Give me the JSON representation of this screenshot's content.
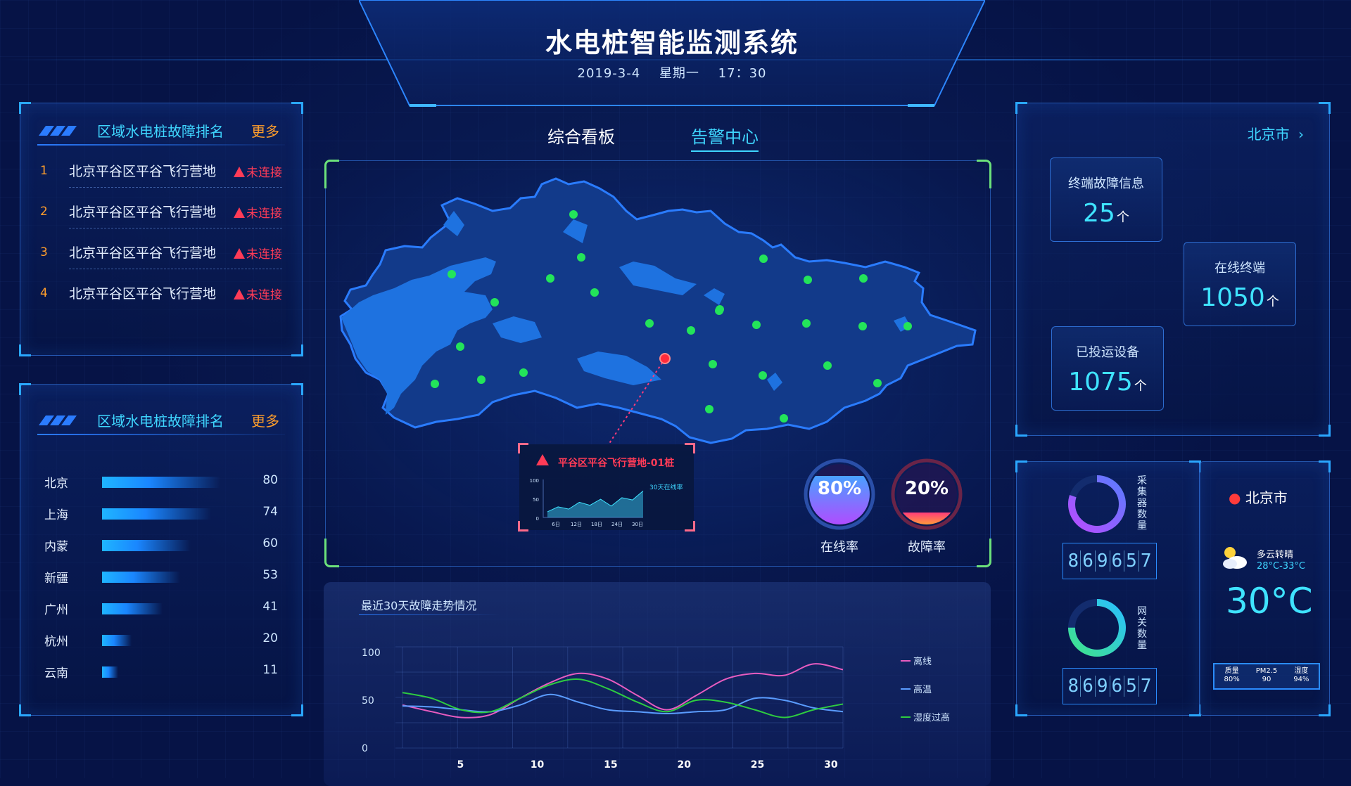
{
  "header": {
    "title": "水电桩智能监测系统",
    "date": "2019-3-4",
    "weekday": "星期一",
    "time": "17：30"
  },
  "nav": {
    "tabs": [
      {
        "label": "综合看板",
        "active": false
      },
      {
        "label": "告警中心",
        "active": true
      }
    ]
  },
  "fault_ranking": {
    "title": "区域水电桩故障排名",
    "more": "更多",
    "items": [
      {
        "rank": "1",
        "name": "北京平谷区平谷飞行营地",
        "status": "未连接"
      },
      {
        "rank": "2",
        "name": "北京平谷区平谷飞行营地",
        "status": "未连接"
      },
      {
        "rank": "3",
        "name": "北京平谷区平谷飞行营地",
        "status": "未连接"
      },
      {
        "rank": "4",
        "name": "北京平谷区平谷飞行营地",
        "status": "未连接"
      }
    ]
  },
  "region_bars": {
    "title": "区域水电桩故障排名",
    "more": "更多",
    "max": 100,
    "items": [
      {
        "name": "北京",
        "value": 80
      },
      {
        "name": "上海",
        "value": 74
      },
      {
        "name": "内蒙",
        "value": 60
      },
      {
        "name": "新疆",
        "value": 53
      },
      {
        "name": "广州",
        "value": 41
      },
      {
        "name": "杭州",
        "value": 20
      },
      {
        "name": "云南",
        "value": 11
      }
    ]
  },
  "map": {
    "popup": {
      "title": "平谷区平谷飞行营地-01桩",
      "subtitle": "30天在线率",
      "y_ticks": [
        "100",
        "50",
        "0"
      ],
      "x_ticks": [
        "6日",
        "12日",
        "18日",
        "24日",
        "30日"
      ],
      "values": [
        15,
        28,
        22,
        40,
        32,
        48,
        30,
        52,
        46,
        70
      ]
    },
    "gauges": [
      {
        "value": "80%",
        "label": "在线率",
        "fill": 0.8,
        "color_top": "#4aa0ff",
        "color_bottom": "#b04cff"
      },
      {
        "value": "20%",
        "label": "故障率",
        "fill": 0.2,
        "color_top": "#ff3b7a",
        "color_bottom": "#ff9a3b"
      }
    ],
    "colors": {
      "land": "#123a8a",
      "lake": "#1e72e0",
      "dot": "#23e45a",
      "alarm": "#ff2b3b"
    }
  },
  "stats": {
    "city": "北京市",
    "boxes": [
      {
        "label": "终端故障信息",
        "value": "25",
        "unit": "个"
      },
      {
        "label": "在线终端",
        "value": "1050",
        "unit": "个"
      },
      {
        "label": "已投运设备",
        "value": "1075",
        "unit": "个"
      }
    ]
  },
  "devices": {
    "collector": {
      "label": "采集器数量",
      "digits": [
        "8",
        "6",
        "9",
        "6",
        "5",
        "7"
      ],
      "ring": 0.8
    },
    "gateway": {
      "label": "网关数量",
      "digits": [
        "8",
        "6",
        "9",
        "6",
        "5",
        "7"
      ],
      "ring": 0.75
    }
  },
  "weather": {
    "city": "北京市",
    "desc": "多云转晴",
    "range": "28°C-33°C",
    "temp": "30°C",
    "aq": [
      {
        "label": "质量",
        "value": "80%"
      },
      {
        "label": "PM2.5",
        "value": "90"
      },
      {
        "label": "湿度",
        "value": "94%"
      }
    ]
  },
  "chart_data": {
    "type": "line",
    "title": "最近30天故障走势情况",
    "x": [
      1,
      3,
      5,
      7,
      9,
      11,
      13,
      15,
      17,
      19,
      21,
      23,
      25,
      27,
      29,
      31
    ],
    "xticks": [
      5,
      10,
      15,
      20,
      25,
      30
    ],
    "yticks": [
      0,
      50,
      100
    ],
    "ylim": [
      0,
      100
    ],
    "series": [
      {
        "name": "离线",
        "color": "#e85cc0",
        "values": [
          45,
          38,
          32,
          35,
          52,
          68,
          78,
          72,
          55,
          40,
          55,
          72,
          78,
          76,
          88,
          82
        ]
      },
      {
        "name": "高温",
        "color": "#5a9cff",
        "values": [
          44,
          43,
          40,
          38,
          45,
          56,
          48,
          40,
          38,
          36,
          38,
          40,
          52,
          50,
          42,
          38
        ]
      },
      {
        "name": "湿度过高",
        "color": "#2ecc40",
        "values": [
          58,
          52,
          40,
          38,
          52,
          66,
          72,
          62,
          48,
          38,
          50,
          48,
          40,
          32,
          40,
          46
        ]
      }
    ]
  }
}
